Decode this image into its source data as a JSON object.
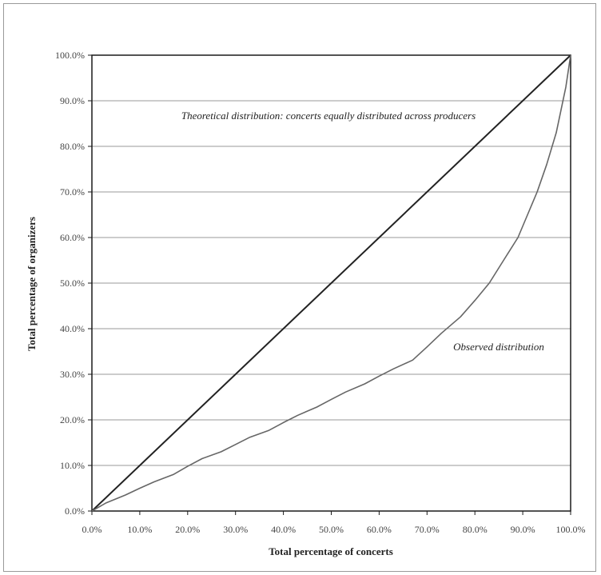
{
  "chart_data": {
    "type": "line",
    "title": "",
    "xlabel": "Total percentage of concerts",
    "ylabel": "Total percentage of  organizers",
    "xlim": [
      0,
      100
    ],
    "ylim": [
      0,
      100
    ],
    "grid": "horizontal",
    "legend": "none",
    "x_ticks": [
      "0.0%",
      "10.0%",
      "20.0%",
      "30.0%",
      "40.0%",
      "50.0%",
      "60.0%",
      "70.0%",
      "80.0%",
      "90.0%",
      "100.0%"
    ],
    "y_ticks": [
      "0.0%",
      "10.0%",
      "20.0%",
      "30.0%",
      "40.0%",
      "50.0%",
      "60.0%",
      "70.0%",
      "80.0%",
      "90.0%",
      "100.0%"
    ],
    "series": [
      {
        "color": "#222222",
        "x": [
          0,
          100
        ],
        "y": [
          0,
          100
        ]
      },
      {
        "color": "#666666",
        "x": [
          0,
          3,
          7,
          10,
          13,
          17,
          20,
          23,
          27,
          30,
          33,
          37,
          40,
          43,
          47,
          50,
          53,
          57,
          60,
          63,
          67,
          70,
          73,
          77,
          80,
          83,
          86,
          89,
          91,
          93,
          95,
          97,
          98,
          99,
          100
        ],
        "y": [
          0,
          1.8,
          3.5,
          5,
          6.4,
          8,
          9.8,
          11.5,
          13,
          14.6,
          16.2,
          17.7,
          19.4,
          21,
          22.8,
          24.5,
          26.1,
          27.9,
          29.6,
          31.2,
          33.1,
          36,
          39,
          42.6,
          46.2,
          50,
          55,
          60,
          65,
          70,
          76,
          83,
          88,
          93,
          100
        ]
      }
    ],
    "annotations": [
      {
        "text": "Theoretical distribution: concerts equally distributed across producers"
      },
      {
        "text": "Observed distribution"
      }
    ]
  }
}
